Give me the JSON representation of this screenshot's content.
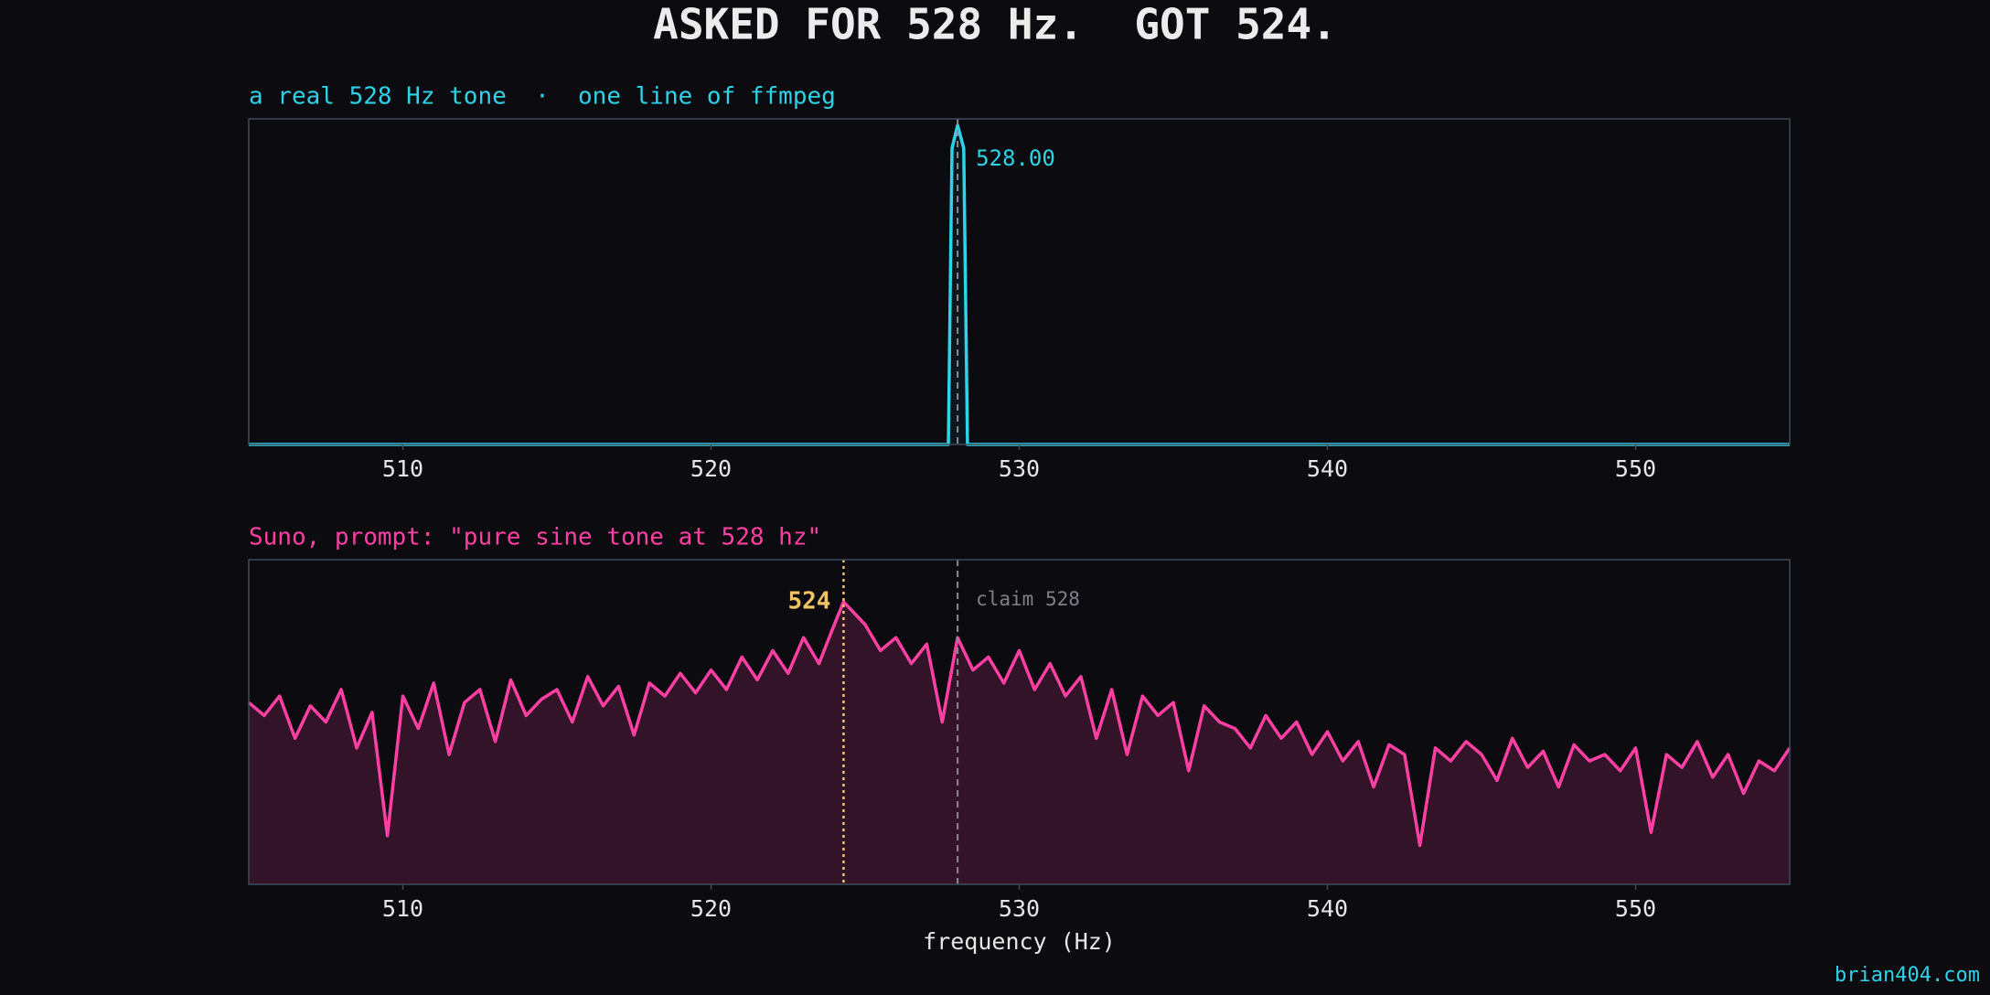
{
  "title": "ASKED FOR 528 Hz.  GOT 524.",
  "watermark": "brian404.com",
  "chart_data": [
    {
      "type": "line",
      "subtitle": "a real 528 Hz tone  ·  one line of ffmpeg",
      "x": [
        505,
        527.7,
        527.82,
        528.0,
        528.2,
        528.32,
        555
      ],
      "series": [
        {
          "color": "#2ed3ea",
          "values": [
            0,
            0,
            0.91,
            0.98,
            0.91,
            0,
            0
          ]
        }
      ],
      "reference": {
        "value": 528
      },
      "peak": {
        "value": 528,
        "label": "528.00"
      },
      "xlim": [
        505,
        555
      ],
      "ylim": [
        0,
        1
      ],
      "xticks": [
        510,
        520,
        530,
        540,
        550
      ]
    },
    {
      "type": "area",
      "subtitle": "Suno, prompt: \"pure sine tone at 528 hz\"",
      "xlabel": "frequency (Hz)",
      "x": [
        505,
        505.5,
        506,
        506.5,
        507,
        507.5,
        508,
        508.5,
        509,
        509.5,
        510,
        510.5,
        511,
        511.5,
        512,
        512.5,
        513,
        513.5,
        514,
        514.5,
        515,
        515.5,
        516,
        516.5,
        517,
        517.5,
        518,
        518.5,
        519,
        519.5,
        520,
        520.5,
        521,
        521.5,
        522,
        522.5,
        523,
        523.5,
        524,
        524.3,
        525,
        525.5,
        526,
        526.5,
        527,
        527.5,
        528,
        528.5,
        529,
        529.5,
        530,
        530.5,
        531,
        531.5,
        532,
        532.5,
        533,
        533.5,
        534,
        534.5,
        535,
        535.5,
        536,
        536.5,
        537,
        537.5,
        538,
        538.5,
        539,
        539.5,
        540,
        540.5,
        541,
        541.5,
        542,
        542.5,
        543,
        543.5,
        544,
        544.5,
        545,
        545.5,
        546,
        546.5,
        547,
        547.5,
        548,
        548.5,
        549,
        549.5,
        550,
        550.5,
        551,
        551.5,
        552,
        552.5,
        553,
        553.5,
        554,
        554.5,
        555
      ],
      "series": [
        {
          "color": "#ff3fa4",
          "values": [
            0.56,
            0.52,
            0.58,
            0.45,
            0.55,
            0.5,
            0.6,
            0.42,
            0.53,
            0.15,
            0.58,
            0.48,
            0.62,
            0.4,
            0.56,
            0.6,
            0.44,
            0.63,
            0.52,
            0.57,
            0.6,
            0.5,
            0.64,
            0.55,
            0.61,
            0.46,
            0.62,
            0.58,
            0.65,
            0.59,
            0.66,
            0.6,
            0.7,
            0.63,
            0.72,
            0.65,
            0.76,
            0.68,
            0.8,
            0.87,
            0.8,
            0.72,
            0.76,
            0.68,
            0.74,
            0.5,
            0.76,
            0.66,
            0.7,
            0.62,
            0.72,
            0.6,
            0.68,
            0.58,
            0.64,
            0.45,
            0.6,
            0.4,
            0.58,
            0.52,
            0.56,
            0.35,
            0.55,
            0.5,
            0.48,
            0.42,
            0.52,
            0.45,
            0.5,
            0.4,
            0.47,
            0.38,
            0.44,
            0.3,
            0.43,
            0.4,
            0.12,
            0.42,
            0.38,
            0.44,
            0.4,
            0.32,
            0.45,
            0.36,
            0.41,
            0.3,
            0.43,
            0.38,
            0.4,
            0.35,
            0.42,
            0.16,
            0.4,
            0.36,
            0.44,
            0.33,
            0.4,
            0.28,
            0.38,
            0.35,
            0.42
          ]
        }
      ],
      "reference": {
        "value": 528,
        "label": "claim 528"
      },
      "peak": {
        "value": 524.3,
        "label": "524",
        "color": "#f2c464"
      },
      "xlim": [
        505,
        555
      ],
      "ylim": [
        0,
        1
      ],
      "xticks": [
        510,
        520,
        530,
        540,
        550
      ]
    }
  ]
}
